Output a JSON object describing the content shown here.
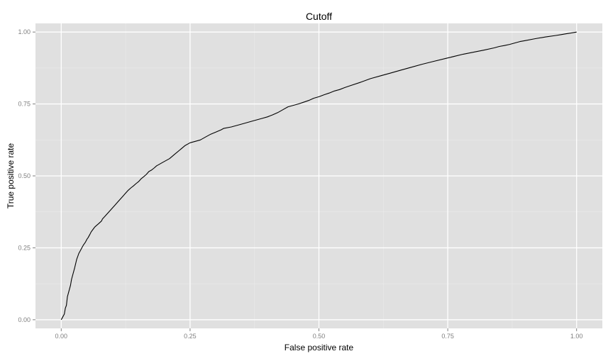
{
  "chart_data": {
    "type": "line",
    "title": "Cutoff",
    "xlabel": "False positive rate",
    "ylabel": "True positive rate",
    "xlim": [
      -0.05,
      1.05
    ],
    "ylim": [
      -0.03,
      1.03
    ],
    "x_ticks": [
      0,
      0.25,
      0.5,
      0.75,
      1
    ],
    "x_tick_labels": [
      "0.00",
      "0.25",
      "0.50",
      "0.75",
      "1.00"
    ],
    "y_ticks": [
      0,
      0.25,
      0.5,
      0.75,
      1
    ],
    "y_tick_labels": [
      "0.00",
      "0.25",
      "0.50",
      "0.75",
      "1.00"
    ],
    "grid": true,
    "colors": {
      "panel_background": "#e0e0e0",
      "grid_major": "#ffffff",
      "grid_minor": "#eaeaea",
      "line": "#000000"
    },
    "series": [
      {
        "x": [
          0,
          0.003,
          0.006,
          0.008,
          0.01,
          0.012,
          0.015,
          0.018,
          0.02,
          0.023,
          0.026,
          0.03,
          0.032,
          0.034,
          0.037,
          0.04,
          0.043,
          0.047,
          0.05,
          0.052,
          0.055,
          0.058,
          0.062,
          0.065,
          0.068,
          0.072,
          0.075,
          0.078,
          0.08,
          0.085,
          0.09,
          0.095,
          0.1,
          0.105,
          0.11,
          0.115,
          0.12,
          0.125,
          0.13,
          0.135,
          0.14,
          0.145,
          0.15,
          0.155,
          0.16,
          0.165,
          0.17,
          0.175,
          0.18,
          0.185,
          0.19,
          0.195,
          0.2,
          0.21,
          0.22,
          0.23,
          0.24,
          0.25,
          0.26,
          0.27,
          0.28,
          0.29,
          0.3,
          0.31,
          0.315,
          0.33,
          0.35,
          0.37,
          0.39,
          0.4,
          0.41,
          0.42,
          0.43,
          0.44,
          0.45,
          0.46,
          0.47,
          0.48,
          0.49,
          0.5,
          0.51,
          0.52,
          0.53,
          0.54,
          0.55,
          0.56,
          0.58,
          0.6,
          0.62,
          0.64,
          0.66,
          0.68,
          0.7,
          0.72,
          0.75,
          0.78,
          0.8,
          0.82,
          0.84,
          0.85,
          0.86,
          0.87,
          0.88,
          0.89,
          0.9,
          0.92,
          0.94,
          0.96,
          0.97,
          0.98,
          0.99,
          1.0
        ],
        "y": [
          0,
          0.01,
          0.02,
          0.04,
          0.05,
          0.08,
          0.1,
          0.12,
          0.14,
          0.16,
          0.18,
          0.21,
          0.22,
          0.23,
          0.24,
          0.25,
          0.26,
          0.27,
          0.28,
          0.285,
          0.295,
          0.305,
          0.315,
          0.322,
          0.327,
          0.333,
          0.338,
          0.343,
          0.35,
          0.36,
          0.37,
          0.38,
          0.39,
          0.4,
          0.41,
          0.42,
          0.43,
          0.44,
          0.45,
          0.458,
          0.465,
          0.473,
          0.48,
          0.49,
          0.497,
          0.505,
          0.515,
          0.52,
          0.527,
          0.535,
          0.54,
          0.545,
          0.55,
          0.56,
          0.575,
          0.59,
          0.605,
          0.615,
          0.62,
          0.625,
          0.635,
          0.645,
          0.652,
          0.66,
          0.665,
          0.67,
          0.68,
          0.69,
          0.7,
          0.705,
          0.712,
          0.72,
          0.73,
          0.74,
          0.745,
          0.75,
          0.756,
          0.762,
          0.77,
          0.775,
          0.782,
          0.788,
          0.795,
          0.8,
          0.807,
          0.813,
          0.825,
          0.838,
          0.848,
          0.858,
          0.868,
          0.878,
          0.888,
          0.897,
          0.91,
          0.923,
          0.93,
          0.937,
          0.945,
          0.95,
          0.953,
          0.957,
          0.962,
          0.967,
          0.97,
          0.977,
          0.983,
          0.988,
          0.991,
          0.994,
          0.997,
          1.0
        ]
      }
    ]
  }
}
